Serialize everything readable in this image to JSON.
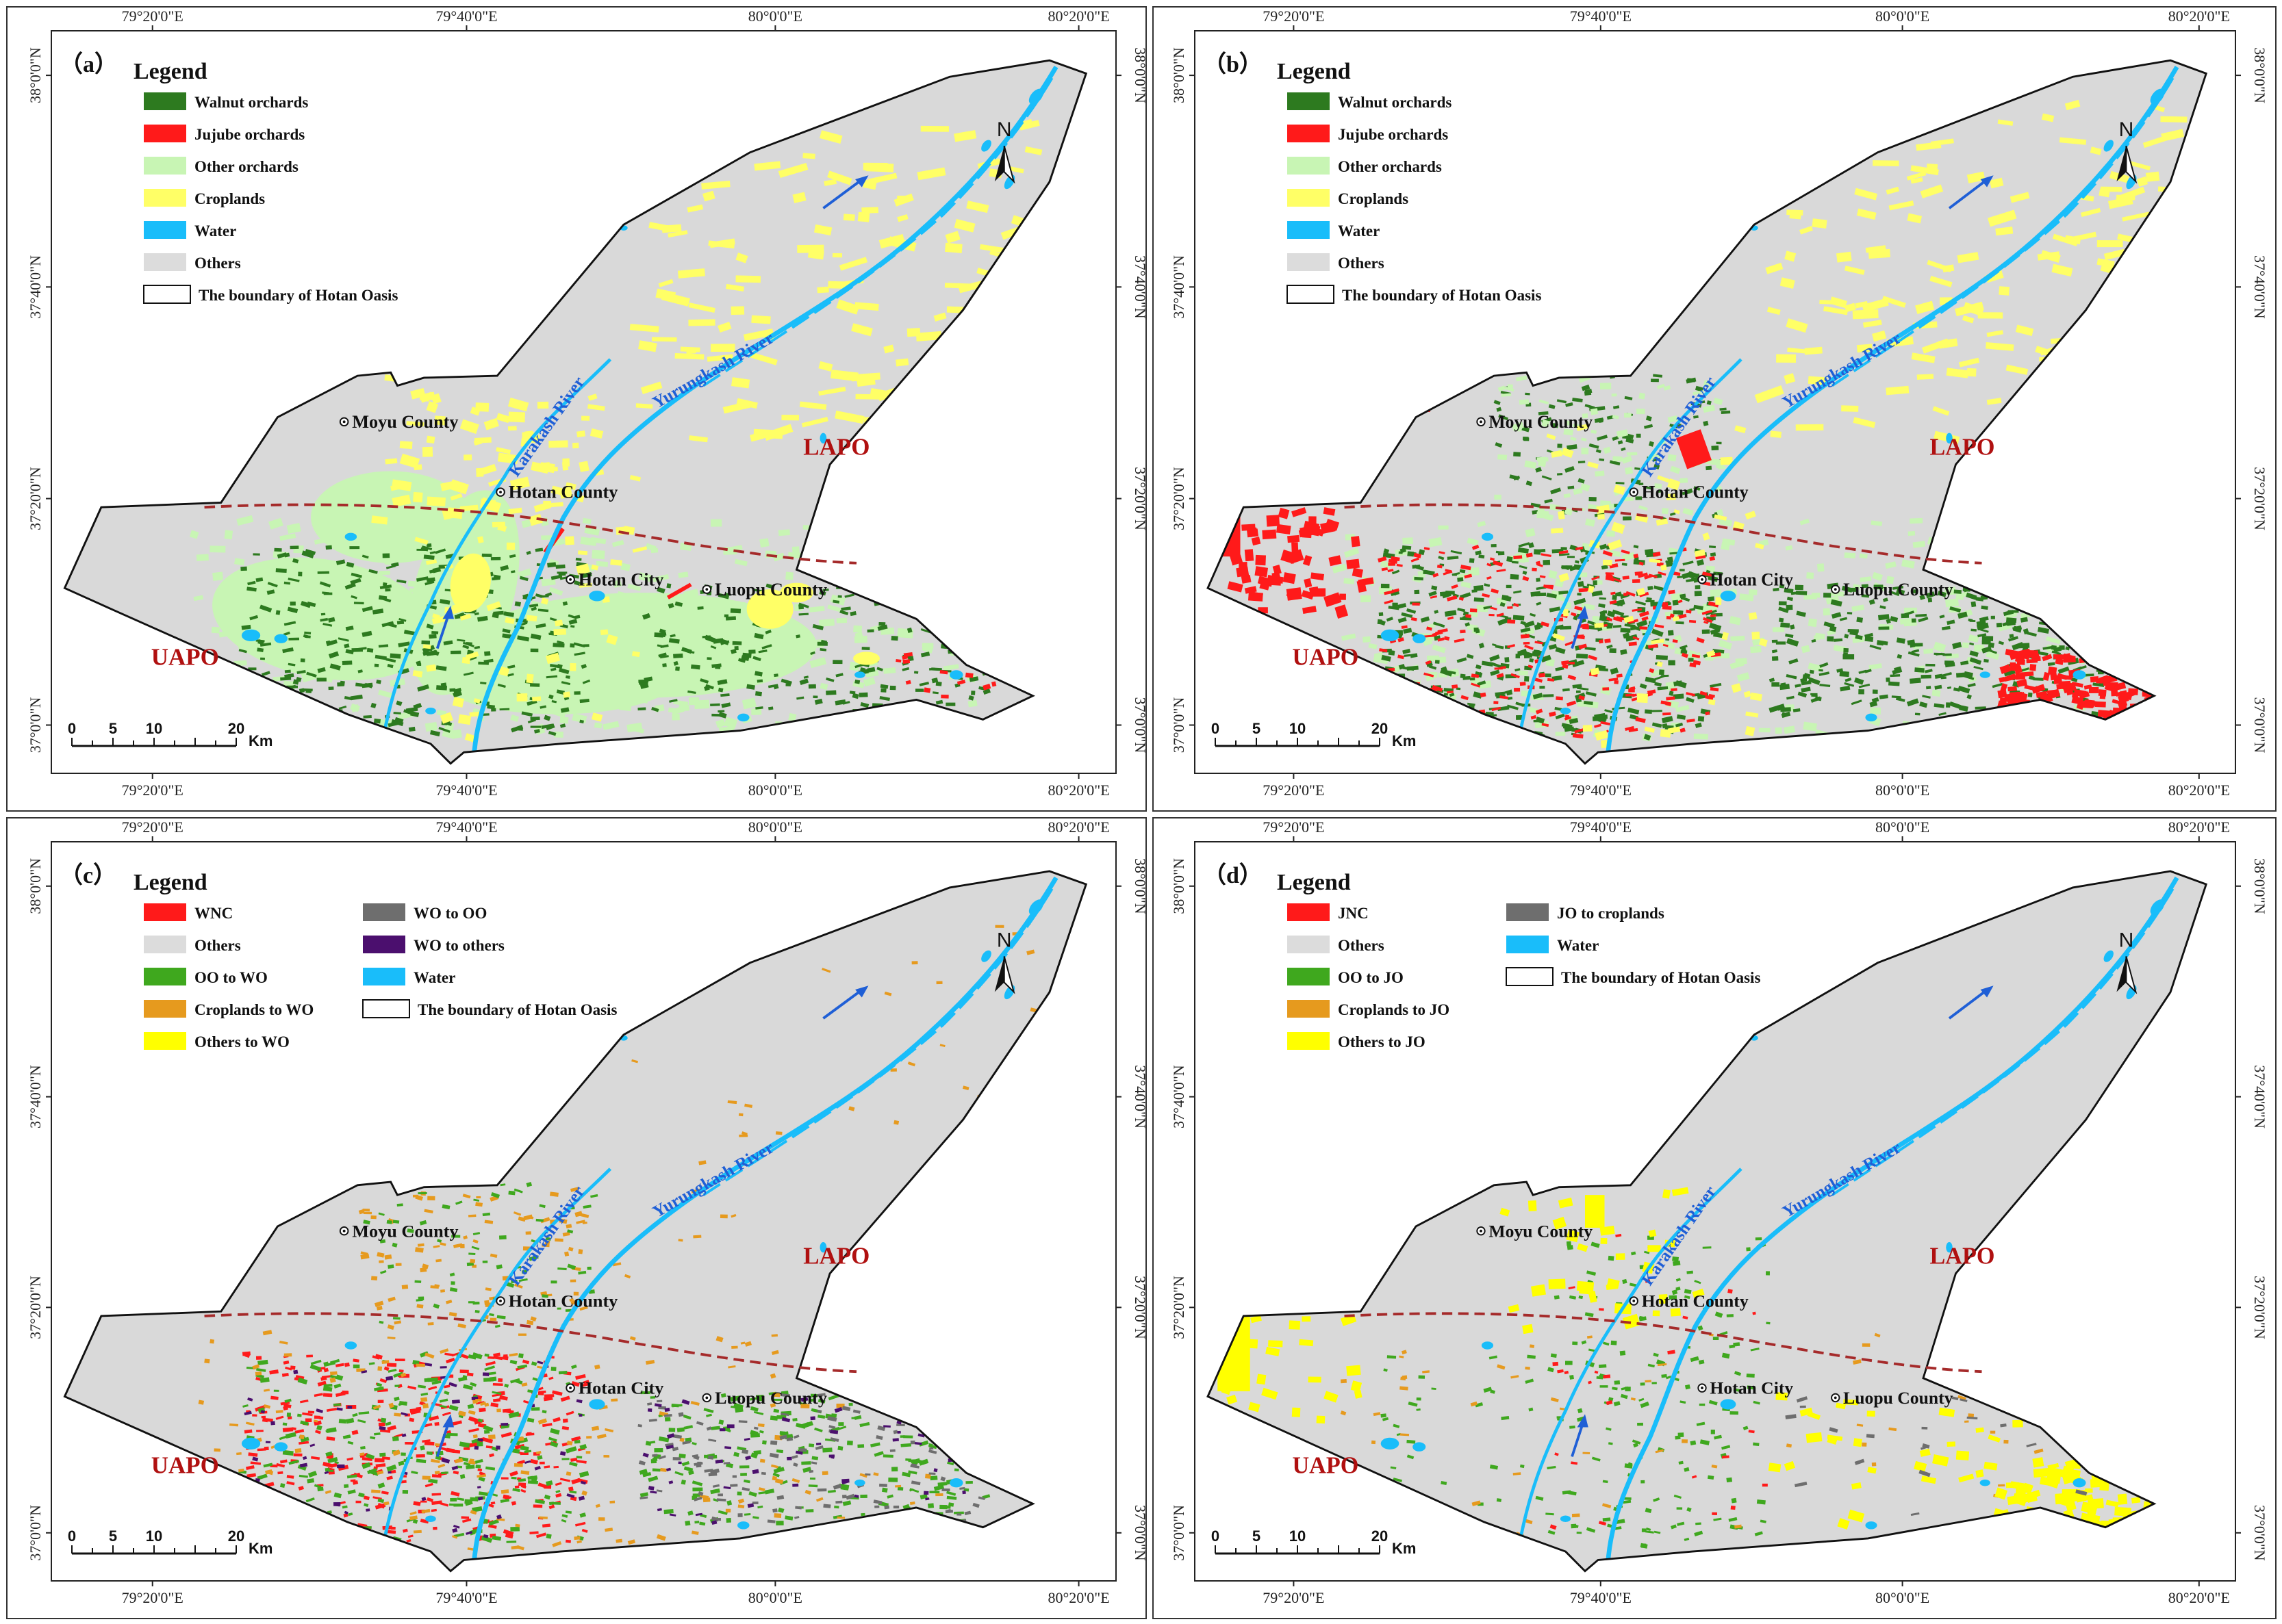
{
  "colors": {
    "oasis_fill": "#d9d9d9",
    "walnut": "#2d7a1f",
    "jujube": "#ff1a1a",
    "other_orchards": "#c8f5b4",
    "croplands": "#ffff66",
    "water": "#19bdfa",
    "others": "#dcdcdc",
    "river_label": "#1f5fd6",
    "zone_label": "#b01010",
    "divider": "#a52a2a",
    "oo_to_wo": "#3fa81e",
    "croplands_to_wo": "#e69a1e",
    "others_to_wo": "#ffff00",
    "wo_to_oo": "#6e6e6e",
    "wo_to_others": "#4b0f6e",
    "wnc": "#ff1a1a"
  },
  "axes": {
    "top_ticks": [
      "79°20'0\"E",
      "79°40'0\"E",
      "80°0'0\"E",
      "80°20'0\"E"
    ],
    "left_ticks": [
      "38°0'0\"N",
      "37°40'0\"N",
      "37°20'0\"N",
      "37°0'0\"N"
    ]
  },
  "places": {
    "moyu": "Moyu County",
    "hotan_county": "Hotan County",
    "hotan_city": "Hotan City",
    "luopu": "Luopu County",
    "karakash": "Karakash River",
    "yurungkash": "Yurungkash River",
    "lapo": "LAPO",
    "uapo": "UAPO"
  },
  "north": "N",
  "scale": {
    "ticks": [
      "0",
      "5",
      "10",
      "20"
    ],
    "unit": "Km"
  },
  "panels": [
    {
      "label": "（a）",
      "legend_title": "Legend",
      "legend": [
        {
          "label": "Walnut orchards",
          "color": "#2d7a1f"
        },
        {
          "label": "Jujube orchards",
          "color": "#ff1a1a"
        },
        {
          "label": "Other orchards",
          "color": "#c8f5b4"
        },
        {
          "label": "Croplands",
          "color": "#ffff66"
        },
        {
          "label": "Water",
          "color": "#19bdfa"
        },
        {
          "label": "Others",
          "color": "#dcdcdc"
        },
        {
          "label": "The boundary of Hotan Oasis",
          "color": "boundary"
        }
      ]
    },
    {
      "label": "（b）",
      "legend_title": "Legend",
      "legend": [
        {
          "label": "Walnut orchards",
          "color": "#2d7a1f"
        },
        {
          "label": "Jujube orchards",
          "color": "#ff1a1a"
        },
        {
          "label": "Other orchards",
          "color": "#c8f5b4"
        },
        {
          "label": "Croplands",
          "color": "#ffff66"
        },
        {
          "label": "Water",
          "color": "#19bdfa"
        },
        {
          "label": "Others",
          "color": "#dcdcdc"
        },
        {
          "label": "The boundary of Hotan Oasis",
          "color": "boundary"
        }
      ]
    },
    {
      "label": "（c）",
      "legend_title": "Legend",
      "legend": [
        {
          "label": "WNC",
          "color": "#ff1a1a"
        },
        {
          "label": "Others",
          "color": "#dcdcdc"
        },
        {
          "label": "OO to WO",
          "color": "#3fa81e"
        },
        {
          "label": "Croplands to WO",
          "color": "#e69a1e"
        },
        {
          "label": "Others to WO",
          "color": "#ffff00"
        },
        {
          "label": "WO to OO",
          "color": "#6e6e6e"
        },
        {
          "label": "WO to others",
          "color": "#4b0f6e"
        },
        {
          "label": "Water",
          "color": "#19bdfa"
        },
        {
          "label": "The boundary of Hotan Oasis",
          "color": "boundary"
        }
      ]
    },
    {
      "label": "（d）",
      "legend_title": "Legend",
      "legend": [
        {
          "label": "JNC",
          "color": "#ff1a1a"
        },
        {
          "label": "Others",
          "color": "#dcdcdc"
        },
        {
          "label": "OO to JO",
          "color": "#3fa81e"
        },
        {
          "label": "Croplands to JO",
          "color": "#e69a1e"
        },
        {
          "label": "Others to JO",
          "color": "#ffff00"
        },
        {
          "label": "JO to croplands",
          "color": "#6e6e6e"
        },
        {
          "label": "Water",
          "color": "#19bdfa"
        },
        {
          "label": "The boundary of Hotan Oasis",
          "color": "boundary"
        }
      ]
    }
  ]
}
